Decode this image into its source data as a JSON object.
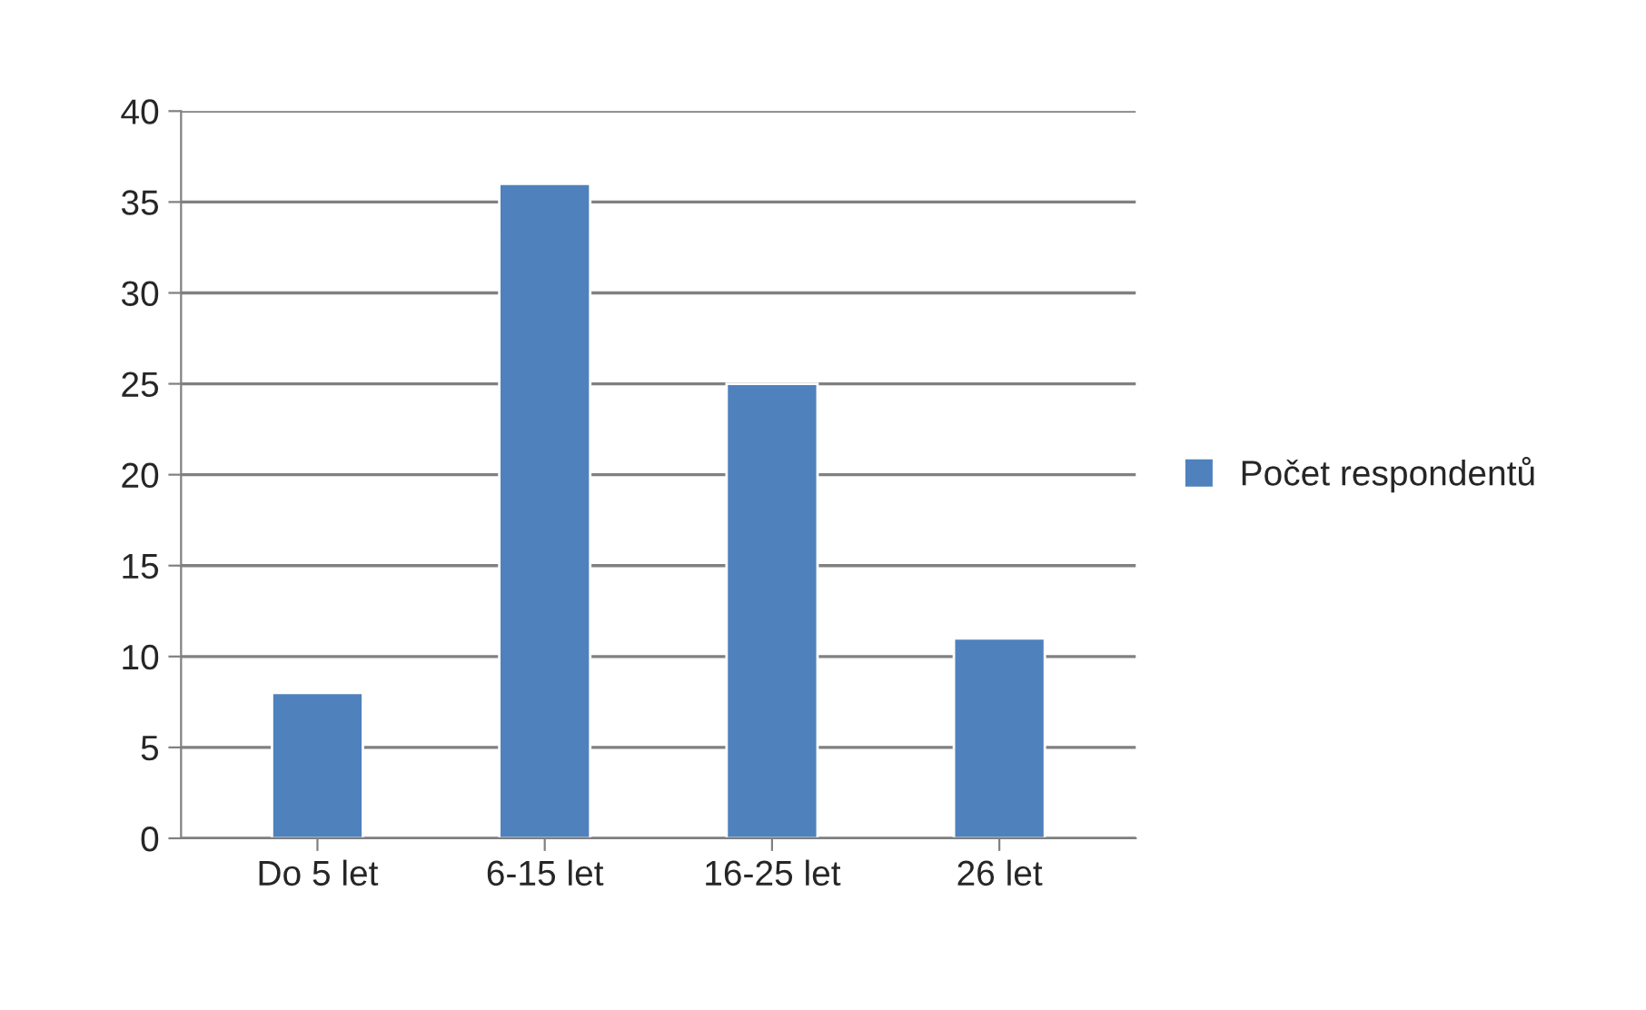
{
  "chart_data": {
    "type": "bar",
    "categories": [
      "Do 5 let",
      "6-15 let",
      "16-25 let",
      "26 let"
    ],
    "series": [
      {
        "name": "Počet respondentů",
        "color": "#4f81bd",
        "values": [
          8,
          36,
          25,
          11
        ]
      }
    ],
    "ylim": [
      0,
      40
    ],
    "yticks": [
      0,
      5,
      10,
      15,
      20,
      25,
      30,
      35,
      40
    ],
    "grid": "y",
    "legend": "right"
  }
}
